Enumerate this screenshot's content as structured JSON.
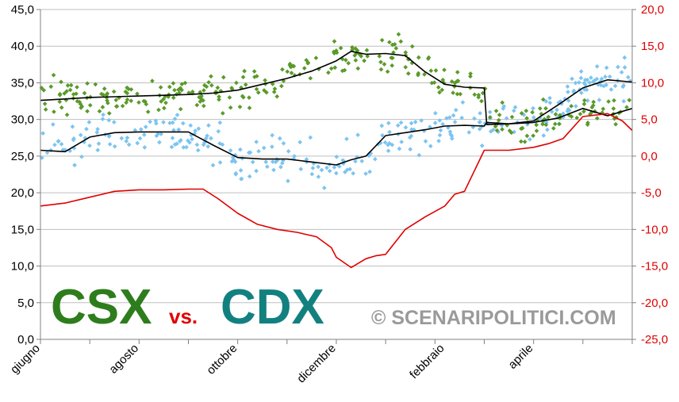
{
  "chart_data": {
    "type": "scatter",
    "title": "",
    "overlay_text": {
      "csx": "CSX",
      "vs": "vs.",
      "cdx": "CDX",
      "watermark": "© SCENARIPOLITICI.COM"
    },
    "x_labels": [
      "giugno",
      "agosto",
      "ottobre",
      "dicembre",
      "febbraio",
      "aprile"
    ],
    "x_range": [
      0,
      12
    ],
    "left_axis": {
      "ylim": [
        0,
        45
      ],
      "ticks": [
        "0,0",
        "5,0",
        "10,0",
        "15,0",
        "20,0",
        "25,0",
        "30,0",
        "35,0",
        "40,0",
        "45,0"
      ]
    },
    "right_axis": {
      "ylim": [
        -25,
        20
      ],
      "ticks": [
        "-25,0",
        "-20,0",
        "-15,0",
        "-10,0",
        "-5,0",
        "0,0",
        "5,0",
        "10,0",
        "15,0",
        "20,0"
      ]
    },
    "grid": true,
    "colors": {
      "csx": "#2e7d1c",
      "csx_points": "#5a9a2a",
      "cdx": "#138080",
      "cdx_points": "#7cc4f0",
      "diff": "#e00000",
      "trend": "#000000",
      "watermark": "#9a9a9a",
      "vs": "#e00000",
      "right_axis": "#e00000"
    },
    "series": [
      {
        "key": "csx_trend",
        "axis": "left",
        "x": [
          0,
          0.5,
          1,
          1.5,
          2,
          2.5,
          3,
          3.5,
          4,
          4.5,
          5,
          5.5,
          6,
          6.3,
          6.6,
          7,
          7.4,
          7.8,
          8.2,
          8.6,
          9.0,
          9.05,
          9.5,
          10,
          10.5,
          11,
          11.5,
          12
        ],
        "y": [
          32.6,
          32.8,
          33.0,
          33.1,
          33.2,
          33.3,
          33.4,
          33.6,
          34.0,
          34.8,
          35.6,
          36.6,
          38.0,
          39.3,
          38.9,
          39.0,
          38.7,
          36.5,
          34.8,
          34.4,
          34.3,
          29.3,
          29.4,
          29.6,
          30.2,
          31.5,
          30.5,
          31.5
        ]
      },
      {
        "key": "cdx_trend",
        "axis": "left",
        "x": [
          0,
          0.5,
          1,
          1.5,
          2,
          2.5,
          3,
          3.5,
          4,
          4.5,
          5,
          5.5,
          6,
          6.3,
          6.6,
          7,
          7.4,
          7.8,
          8.2,
          8.6,
          9.0,
          9.05,
          9.5,
          10,
          10.5,
          11,
          11.5,
          12
        ],
        "y": [
          25.8,
          25.6,
          27.6,
          28.2,
          28.3,
          28.3,
          28.3,
          26.5,
          24.8,
          24.6,
          24.6,
          24.2,
          23.8,
          24.5,
          25.0,
          27.8,
          28.2,
          28.6,
          29.1,
          29.2,
          29.1,
          29.6,
          29.4,
          29.8,
          32.0,
          34.3,
          35.4,
          35.1
        ]
      },
      {
        "key": "diff",
        "axis": "right",
        "x": [
          0,
          0.5,
          1,
          1.5,
          2,
          2.5,
          3,
          3.3,
          3.6,
          4.0,
          4.4,
          4.8,
          5.2,
          5.6,
          5.9,
          6.0,
          6.3,
          6.6,
          6.8,
          7.0,
          7.4,
          7.8,
          8.2,
          8.4,
          8.5,
          8.6,
          9.0,
          9.5,
          10,
          10.3,
          10.6,
          11,
          11.5,
          11.8,
          12
        ],
        "y": [
          -6.8,
          -6.4,
          -5.6,
          -4.8,
          -4.6,
          -4.6,
          -4.5,
          -4.5,
          -5.8,
          -7.8,
          -9.3,
          -10.0,
          -10.4,
          -11.0,
          -12.5,
          -13.8,
          -15.2,
          -14.0,
          -13.6,
          -13.4,
          -10.0,
          -8.3,
          -6.8,
          -5.2,
          -5.0,
          -4.8,
          0.8,
          0.8,
          1.2,
          1.7,
          2.4,
          5.4,
          5.8,
          4.8,
          3.5
        ]
      }
    ]
  }
}
